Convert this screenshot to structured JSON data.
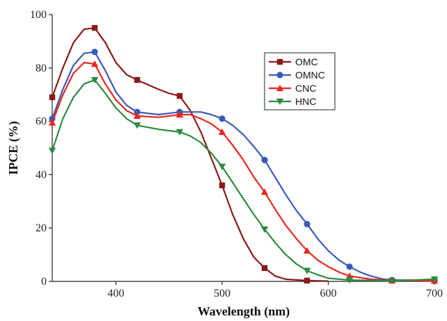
{
  "chart_data": {
    "type": "line",
    "xlabel": "Wavelength (nm)",
    "ylabel": "IPCE (%)",
    "xlim": [
      340,
      700
    ],
    "ylim": [
      0,
      100
    ],
    "xticks": [
      "400",
      "500",
      "600",
      "700"
    ],
    "xtick_values": [
      400,
      500,
      600,
      700
    ],
    "yticks": [
      "0",
      "20",
      "40",
      "60",
      "80",
      "100"
    ],
    "ytick_values": [
      0,
      20,
      40,
      60,
      80,
      100
    ],
    "legend_position": "top-right",
    "grid": false,
    "series": [
      {
        "name": "OMC",
        "color": "#8b1a1a",
        "marker": "square",
        "line": [
          [
            340,
            69
          ],
          [
            350,
            80
          ],
          [
            360,
            89.5
          ],
          [
            370,
            94.5
          ],
          [
            380,
            95
          ],
          [
            390,
            89.5
          ],
          [
            400,
            82
          ],
          [
            410,
            77.5
          ],
          [
            420,
            75.5
          ],
          [
            440,
            72
          ],
          [
            450,
            70.5
          ],
          [
            460,
            69.5
          ],
          [
            470,
            64
          ],
          [
            480,
            56
          ],
          [
            490,
            46
          ],
          [
            500,
            36
          ],
          [
            510,
            25
          ],
          [
            520,
            16
          ],
          [
            530,
            9
          ],
          [
            540,
            5
          ],
          [
            550,
            2
          ],
          [
            560,
            0.8
          ],
          [
            580,
            0.3
          ],
          [
            600,
            0.1
          ]
        ],
        "points": [
          [
            340,
            69
          ],
          [
            380,
            95
          ],
          [
            420,
            75.5
          ],
          [
            460,
            69.5
          ],
          [
            500,
            36
          ],
          [
            540,
            5
          ],
          [
            580,
            0.3
          ]
        ]
      },
      {
        "name": "OMNC",
        "color": "#3a5bb8",
        "marker": "circle",
        "line": [
          [
            340,
            61
          ],
          [
            350,
            72
          ],
          [
            360,
            81
          ],
          [
            370,
            85.5
          ],
          [
            380,
            86
          ],
          [
            390,
            79
          ],
          [
            400,
            71
          ],
          [
            410,
            66
          ],
          [
            420,
            63.5
          ],
          [
            440,
            62.5
          ],
          [
            460,
            63.5
          ],
          [
            480,
            63.5
          ],
          [
            490,
            62.5
          ],
          [
            500,
            61
          ],
          [
            510,
            58.5
          ],
          [
            520,
            55
          ],
          [
            530,
            50.5
          ],
          [
            540,
            45.5
          ],
          [
            550,
            39
          ],
          [
            560,
            32.5
          ],
          [
            570,
            26.5
          ],
          [
            580,
            21.5
          ],
          [
            590,
            16
          ],
          [
            600,
            11.5
          ],
          [
            610,
            8
          ],
          [
            620,
            5.5
          ],
          [
            630,
            3.5
          ],
          [
            640,
            2
          ],
          [
            650,
            1
          ],
          [
            660,
            0.5
          ],
          [
            700,
            0.5
          ]
        ],
        "points": [
          [
            340,
            61
          ],
          [
            380,
            86
          ],
          [
            420,
            63.5
          ],
          [
            460,
            63.5
          ],
          [
            500,
            61
          ],
          [
            540,
            45.5
          ],
          [
            580,
            21.5
          ],
          [
            620,
            5.5
          ],
          [
            660,
            0.5
          ],
          [
            700,
            0.5
          ]
        ]
      },
      {
        "name": "CNC",
        "color": "#e8261f",
        "marker": "triangle-up",
        "line": [
          [
            340,
            59.5
          ],
          [
            350,
            70
          ],
          [
            360,
            78
          ],
          [
            370,
            82
          ],
          [
            380,
            81.5
          ],
          [
            390,
            74
          ],
          [
            400,
            68
          ],
          [
            410,
            64
          ],
          [
            420,
            62
          ],
          [
            440,
            61.5
          ],
          [
            460,
            62.5
          ],
          [
            470,
            62.5
          ],
          [
            480,
            61
          ],
          [
            490,
            59
          ],
          [
            500,
            56
          ],
          [
            510,
            51
          ],
          [
            520,
            45.5
          ],
          [
            530,
            39
          ],
          [
            540,
            33.5
          ],
          [
            550,
            27
          ],
          [
            560,
            21
          ],
          [
            570,
            16
          ],
          [
            580,
            11.5
          ],
          [
            590,
            8
          ],
          [
            600,
            5.5
          ],
          [
            610,
            3.5
          ],
          [
            620,
            2
          ],
          [
            640,
            0.8
          ],
          [
            660,
            0.3
          ],
          [
            700,
            0.2
          ]
        ],
        "points": [
          [
            340,
            59.5
          ],
          [
            380,
            81.5
          ],
          [
            420,
            62
          ],
          [
            460,
            62.5
          ],
          [
            500,
            56
          ],
          [
            540,
            33.5
          ],
          [
            580,
            11.5
          ],
          [
            620,
            2
          ],
          [
            660,
            0.3
          ],
          [
            700,
            0.2
          ]
        ]
      },
      {
        "name": "HNC",
        "color": "#2e8b3e",
        "marker": "triangle-down",
        "line": [
          [
            340,
            49
          ],
          [
            350,
            61
          ],
          [
            360,
            69
          ],
          [
            370,
            74
          ],
          [
            380,
            75.5
          ],
          [
            390,
            70.5
          ],
          [
            400,
            65
          ],
          [
            410,
            61
          ],
          [
            420,
            58.5
          ],
          [
            440,
            57
          ],
          [
            460,
            56
          ],
          [
            470,
            54.5
          ],
          [
            480,
            52
          ],
          [
            490,
            48
          ],
          [
            500,
            43
          ],
          [
            510,
            37
          ],
          [
            520,
            31
          ],
          [
            530,
            25
          ],
          [
            540,
            19.5
          ],
          [
            550,
            14.5
          ],
          [
            560,
            10
          ],
          [
            570,
            6.5
          ],
          [
            580,
            4
          ],
          [
            590,
            2.5
          ],
          [
            600,
            1.2
          ],
          [
            620,
            0.5
          ],
          [
            660,
            0.2
          ],
          [
            700,
            0.8
          ]
        ],
        "points": [
          [
            340,
            49
          ],
          [
            380,
            75.5
          ],
          [
            420,
            58.5
          ],
          [
            460,
            56
          ],
          [
            500,
            43
          ],
          [
            540,
            19.5
          ],
          [
            580,
            4
          ],
          [
            620,
            0.5
          ],
          [
            660,
            0.2
          ],
          [
            700,
            0.8
          ]
        ]
      }
    ]
  }
}
